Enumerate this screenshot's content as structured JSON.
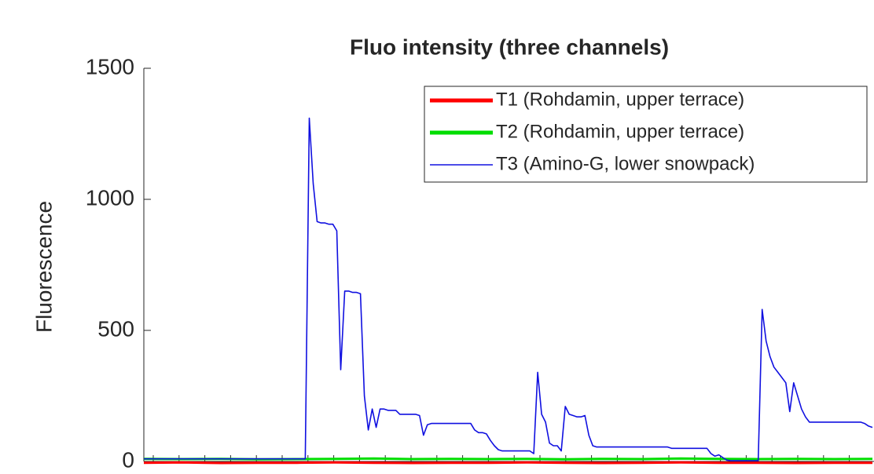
{
  "chart_data": {
    "type": "line",
    "title": "Fluo intensity (three channels)",
    "ylabel": "Fluorescence",
    "ylim": [
      0,
      1500
    ],
    "yticks": [
      0,
      500,
      1000,
      1500
    ],
    "legend": "upper right",
    "series": [
      {
        "name": "T1 (Rohdamin, upper terrace)",
        "color": "#ff0000",
        "width": 3,
        "values": [
          -5,
          -4,
          -6,
          -5,
          -5,
          -4,
          -5,
          -6,
          -5,
          -5,
          -4,
          -5,
          -6,
          -5,
          -4,
          -5,
          -5,
          -6,
          -5,
          -5
        ]
      },
      {
        "name": "T2 (Rohdamin, upper terrace)",
        "color": "#00dd00",
        "width": 3,
        "values": [
          10,
          9,
          10,
          8,
          9,
          10,
          11,
          9,
          10,
          9,
          10,
          8,
          10,
          9,
          11,
          10,
          9,
          10,
          9,
          10
        ]
      },
      {
        "name": "T3 (Amino-G, lower snowpack)",
        "color": "#1010e0",
        "width": 1.6,
        "values": [
          10,
          10,
          10,
          10,
          10,
          10,
          10,
          10,
          10,
          10,
          10,
          10,
          10,
          10,
          10,
          10,
          10,
          10,
          10,
          10,
          10,
          10,
          10,
          10,
          10,
          10,
          10,
          10,
          10,
          10,
          10,
          10,
          10,
          10,
          10,
          10,
          10,
          10,
          10,
          10,
          10,
          10,
          1310,
          1060,
          915,
          910,
          910,
          905,
          905,
          880,
          350,
          650,
          650,
          645,
          645,
          640,
          250,
          120,
          200,
          130,
          200,
          200,
          195,
          195,
          195,
          180,
          180,
          180,
          180,
          180,
          175,
          100,
          140,
          145,
          145,
          145,
          145,
          145,
          145,
          145,
          145,
          145,
          145,
          145,
          120,
          110,
          110,
          105,
          80,
          60,
          45,
          40,
          40,
          40,
          40,
          40,
          40,
          40,
          40,
          30,
          340,
          180,
          150,
          70,
          60,
          60,
          40,
          210,
          180,
          175,
          170,
          170,
          175,
          100,
          60,
          55,
          55,
          55,
          55,
          55,
          55,
          55,
          55,
          55,
          55,
          55,
          55,
          55,
          55,
          55,
          55,
          55,
          55,
          55,
          50,
          50,
          50,
          50,
          50,
          50,
          50,
          50,
          50,
          50,
          30,
          20,
          25,
          15,
          5,
          3,
          3,
          3,
          3,
          3,
          3,
          3,
          3,
          580,
          460,
          400,
          360,
          340,
          320,
          300,
          190,
          300,
          250,
          200,
          170,
          150,
          150,
          150,
          150,
          150,
          150,
          150,
          150,
          150,
          150,
          150,
          150,
          150,
          150,
          145,
          135,
          130
        ]
      }
    ]
  }
}
